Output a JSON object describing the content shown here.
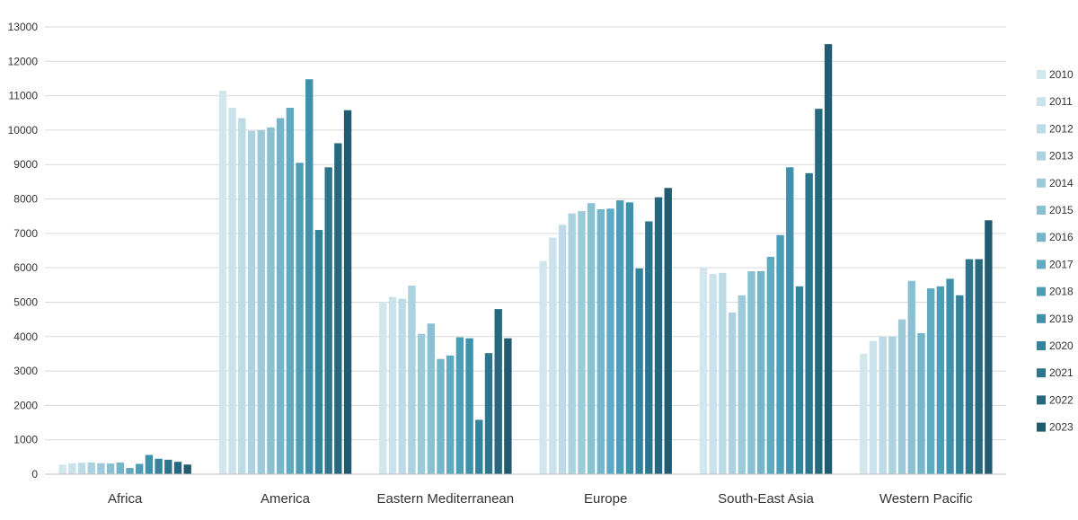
{
  "chart_data": {
    "type": "bar",
    "title": "",
    "xlabel": "",
    "ylabel": "",
    "ylim": [
      0,
      13000
    ],
    "yticks": [
      0,
      1000,
      2000,
      3000,
      4000,
      5000,
      6000,
      7000,
      8000,
      9000,
      10000,
      11000,
      12000,
      13000
    ],
    "grid": true,
    "legend_position": "right",
    "categories": [
      "Africa",
      "America",
      "Eastern Mediterranean",
      "Europe",
      "South-East Asia",
      "Western Pacific"
    ],
    "series": [
      {
        "name": "2010",
        "color": "#d2e6ee",
        "values": [
          280,
          11150,
          5000,
          6200,
          6000,
          3500
        ]
      },
      {
        "name": "2011",
        "color": "#c9e2ec",
        "values": [
          320,
          10650,
          5150,
          6880,
          5820,
          3870
        ]
      },
      {
        "name": "2012",
        "color": "#bcdbe7",
        "values": [
          330,
          10350,
          5100,
          7250,
          5850,
          4000
        ]
      },
      {
        "name": "2013",
        "color": "#acd2e0",
        "values": [
          340,
          9980,
          5480,
          7580,
          4700,
          4000
        ]
      },
      {
        "name": "2014",
        "color": "#9ccad9",
        "values": [
          320,
          10000,
          4080,
          7650,
          5200,
          4500
        ]
      },
      {
        "name": "2015",
        "color": "#8ac1d2",
        "values": [
          310,
          10080,
          4380,
          7880,
          5900,
          5620
        ]
      },
      {
        "name": "2016",
        "color": "#74b5ca",
        "values": [
          340,
          10350,
          3350,
          7700,
          5900,
          4100
        ]
      },
      {
        "name": "2017",
        "color": "#5fa9c1",
        "values": [
          180,
          10650,
          3450,
          7720,
          6320,
          5400
        ]
      },
      {
        "name": "2018",
        "color": "#4c9db6",
        "values": [
          300,
          9050,
          3980,
          7960,
          6950,
          5460
        ]
      },
      {
        "name": "2019",
        "color": "#3f90aa",
        "values": [
          560,
          11480,
          3950,
          7900,
          8920,
          5680
        ]
      },
      {
        "name": "2020",
        "color": "#34839c",
        "values": [
          450,
          7100,
          1580,
          5980,
          5460,
          5200
        ]
      },
      {
        "name": "2021",
        "color": "#2c758d",
        "values": [
          420,
          8920,
          3520,
          7350,
          8750,
          6250
        ]
      },
      {
        "name": "2022",
        "color": "#26687e",
        "values": [
          360,
          9620,
          4800,
          8050,
          10620,
          6250
        ]
      },
      {
        "name": "2023",
        "color": "#215b6f",
        "values": [
          280,
          10580,
          3950,
          8320,
          12500,
          7380
        ]
      }
    ]
  }
}
